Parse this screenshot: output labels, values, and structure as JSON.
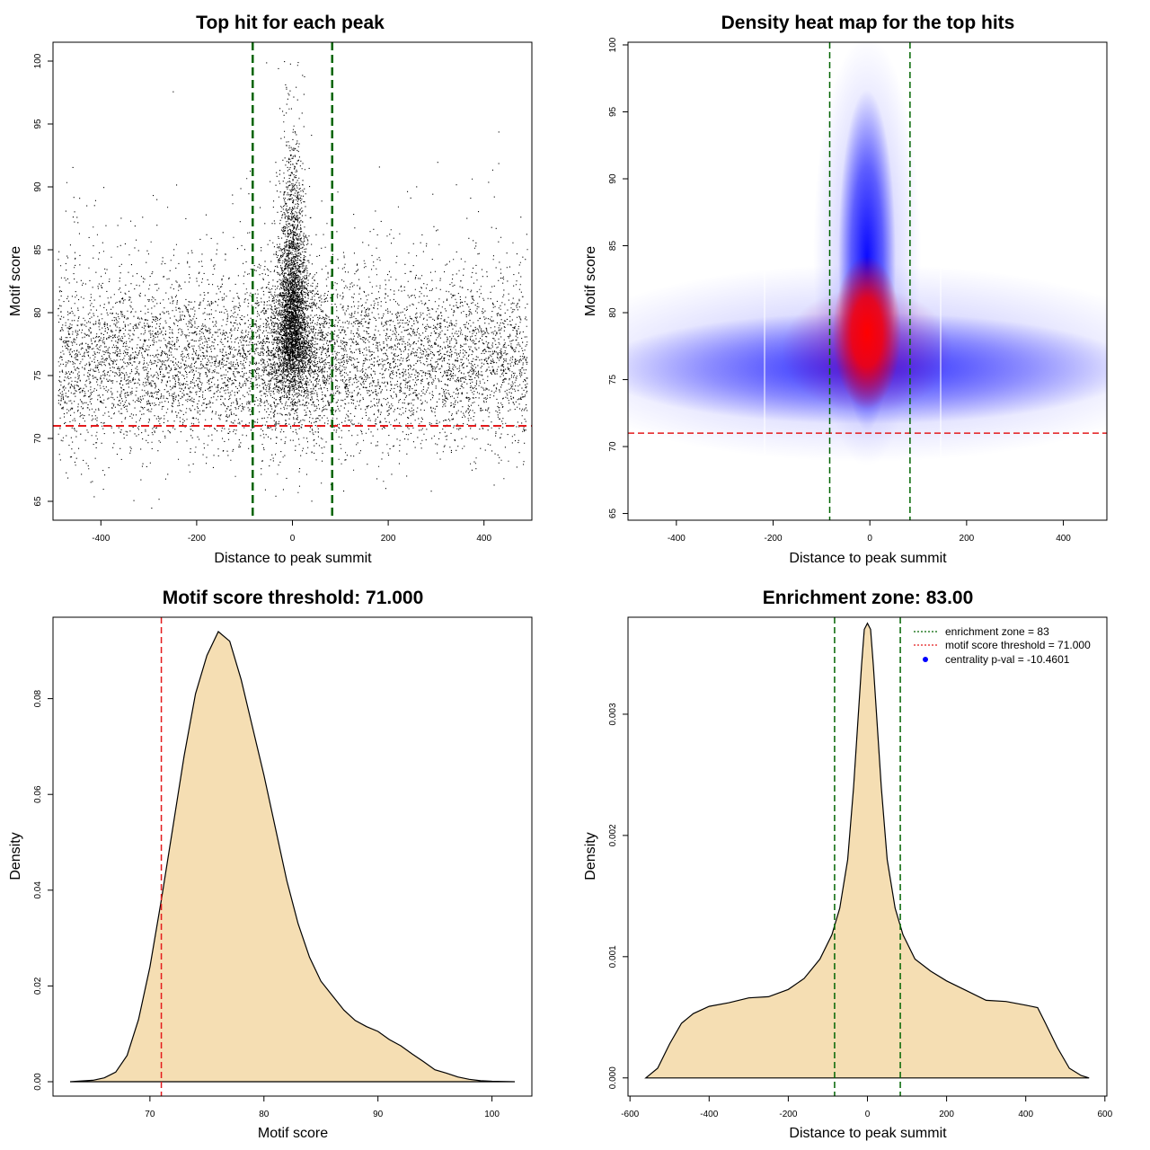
{
  "chart_data": [
    {
      "type": "scatter",
      "title": "Top hit for each peak",
      "xlabel": "Distance to peak summit",
      "ylabel": "Motif score",
      "xlim": [
        -500,
        500
      ],
      "ylim": [
        63.5,
        101.5
      ],
      "xticks": [
        -400,
        -200,
        0,
        200,
        400
      ],
      "yticks": [
        65,
        70,
        75,
        80,
        85,
        90,
        95,
        100
      ],
      "grid": false,
      "threshold": 71.0,
      "zone": [
        -83,
        83
      ],
      "colors": {
        "points": "#000000",
        "threshold": "#e41a1c",
        "zone": "#006400"
      },
      "outliers": [
        {
          "x": -250,
          "y": 97.6
        },
        {
          "x": 430,
          "y": 94.4
        },
        {
          "x": -295,
          "y": 64.5
        },
        {
          "x": -415,
          "y": 65.4
        },
        {
          "x": -55,
          "y": 99.9
        },
        {
          "x": -5,
          "y": 99.8
        },
        {
          "x": 10,
          "y": 99.7
        },
        {
          "x": 20,
          "y": 98.9
        }
      ]
    },
    {
      "type": "heatmap",
      "title": "Density heat map for the top hits",
      "xlabel": "Distance to peak summit",
      "ylabel": "Motif score",
      "xlim": [
        -500,
        490
      ],
      "ylim": [
        64.5,
        100.2
      ],
      "xticks": [
        -400,
        -200,
        0,
        200,
        400
      ],
      "yticks": [
        65,
        70,
        75,
        80,
        85,
        90,
        95,
        100
      ],
      "grid": false,
      "threshold": 71.0,
      "zone": [
        -83,
        83
      ],
      "colors": {
        "low": "#ffffff",
        "mid": "#0000ff",
        "high": "#ff0000",
        "threshold": "#e41a1c",
        "zone": "#006400"
      }
    },
    {
      "type": "area",
      "title": "Motif score threshold: 71.000",
      "xlabel": "Motif score",
      "ylabel": "Density",
      "xlim": [
        61.5,
        103.5
      ],
      "ylim": [
        -0.003,
        0.097
      ],
      "xticks": [
        70,
        80,
        90,
        100
      ],
      "yticks": [
        0.0,
        0.02,
        0.04,
        0.06,
        0.08
      ],
      "ytick_labels": [
        "0.00",
        "0.02",
        "0.04",
        "0.06",
        "0.08"
      ],
      "grid": false,
      "threshold": 71.0,
      "colors": {
        "fill": "#f5deb3",
        "threshold": "#e41a1c"
      },
      "x": [
        63,
        65,
        66,
        67,
        68,
        69,
        70,
        71,
        72,
        73,
        74,
        75,
        76,
        77,
        78,
        79,
        80,
        81,
        82,
        83,
        84,
        85,
        86,
        87,
        88,
        89,
        90,
        91,
        92,
        93,
        94,
        95,
        96,
        97,
        98,
        99,
        100,
        102
      ],
      "y": [
        0.0,
        0.0003,
        0.0008,
        0.002,
        0.0055,
        0.013,
        0.024,
        0.038,
        0.053,
        0.068,
        0.081,
        0.089,
        0.094,
        0.092,
        0.084,
        0.074,
        0.064,
        0.053,
        0.042,
        0.033,
        0.026,
        0.021,
        0.018,
        0.015,
        0.0128,
        0.0115,
        0.0105,
        0.0088,
        0.0075,
        0.0058,
        0.0042,
        0.0025,
        0.0018,
        0.001,
        0.0005,
        0.0002,
        0.0001,
        0.0
      ]
    },
    {
      "type": "area",
      "title": "Enrichment zone: 83.00",
      "xlabel": "Distance to peak summit",
      "ylabel": "Density",
      "xlim": [
        -605,
        605
      ],
      "ylim": [
        -0.00015,
        0.0038
      ],
      "xticks": [
        -600,
        -400,
        -200,
        0,
        200,
        400,
        600
      ],
      "yticks": [
        0.0,
        0.001,
        0.002,
        0.003
      ],
      "ytick_labels": [
        "0.000",
        "0.001",
        "0.002",
        "0.003"
      ],
      "grid": false,
      "zone": [
        -83,
        83
      ],
      "colors": {
        "fill": "#f5deb3",
        "zone": "#006400",
        "threshold": "#e41a1c",
        "pval": "#0000ff"
      },
      "x": [
        -560,
        -530,
        -500,
        -470,
        -440,
        -400,
        -350,
        -300,
        -250,
        -200,
        -160,
        -120,
        -90,
        -70,
        -50,
        -35,
        -25,
        -15,
        -8,
        0,
        8,
        15,
        25,
        35,
        50,
        70,
        90,
        120,
        160,
        200,
        250,
        300,
        350,
        400,
        430,
        450,
        480,
        510,
        540,
        560
      ],
      "y": [
        0.0,
        8e-05,
        0.00028,
        0.00045,
        0.00053,
        0.00059,
        0.00062,
        0.00066,
        0.00067,
        0.00073,
        0.00082,
        0.00098,
        0.00118,
        0.0014,
        0.0018,
        0.0024,
        0.0029,
        0.0034,
        0.0037,
        0.00375,
        0.0037,
        0.0034,
        0.0029,
        0.0024,
        0.0018,
        0.0014,
        0.00118,
        0.00098,
        0.00088,
        0.0008,
        0.00072,
        0.00064,
        0.00063,
        0.0006,
        0.00058,
        0.00045,
        0.00025,
        8e-05,
        2e-05,
        0.0
      ],
      "legend": {
        "placement": "top-right",
        "entries": [
          {
            "label": "enrichment zone = 83",
            "style": "dotted-green"
          },
          {
            "label": "motif score threshold = 71.000",
            "style": "dotted-red"
          },
          {
            "label": "centrality p-val = -10.4601",
            "style": "blue-dot"
          }
        ]
      }
    }
  ]
}
